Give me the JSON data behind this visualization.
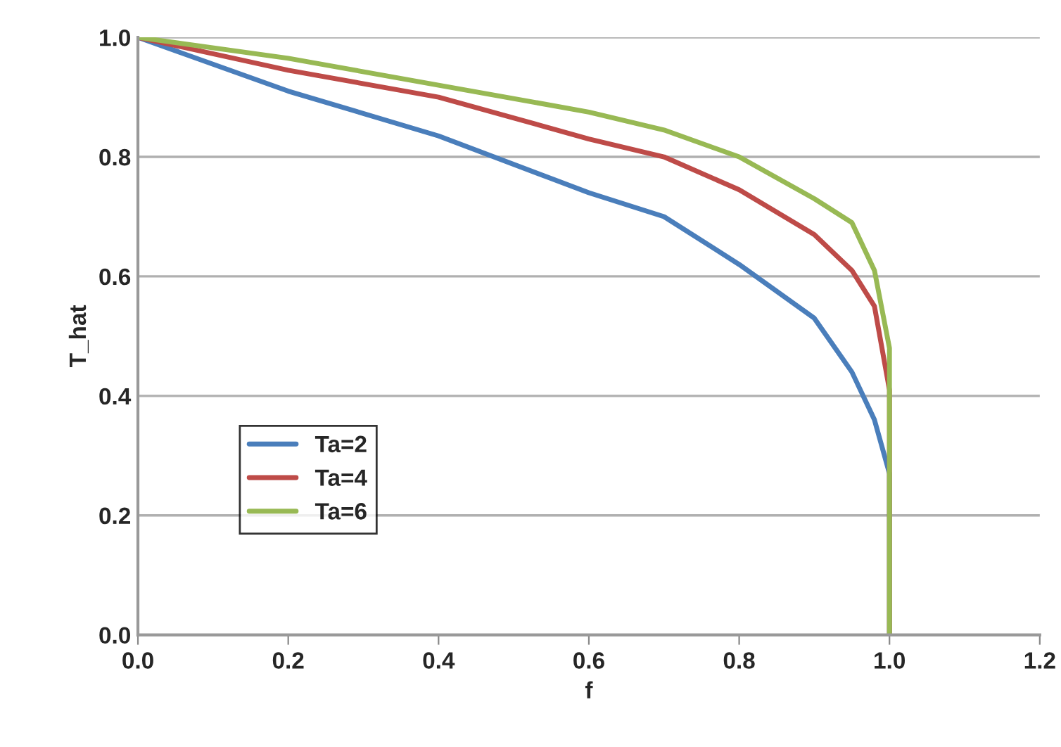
{
  "chart_data": {
    "type": "line",
    "xlabel": "f",
    "ylabel": "T_hat",
    "xlim": [
      0,
      1.2
    ],
    "xticks": [
      {
        "value": 0,
        "label": "0.0"
      },
      {
        "value": 0.2,
        "label": "0.2"
      },
      {
        "value": 0.4,
        "label": "0.4"
      },
      {
        "value": 0.6,
        "label": "0.6"
      },
      {
        "value": 0.8,
        "label": "0.8"
      },
      {
        "value": 1.0,
        "label": "1.0"
      },
      {
        "value": 1.2,
        "label": "1.2"
      }
    ],
    "ylim": [
      0,
      1.0
    ],
    "yticks": [
      {
        "value": 0,
        "label": "0.0"
      },
      {
        "value": 0.2,
        "label": "0.2"
      },
      {
        "value": 0.4,
        "label": "0.4"
      },
      {
        "value": 0.6,
        "label": "0.6"
      },
      {
        "value": 0.8,
        "label": "0.8"
      },
      {
        "value": 1.0,
        "label": "1.0"
      }
    ],
    "grid": "y",
    "legend": "bottom left",
    "marker": "none",
    "line_style": "solid",
    "series": [
      {
        "name": "Ta=2",
        "color": "#4a7ebb",
        "x": [
          0,
          0.2,
          0.4,
          0.6,
          0.7,
          0.8,
          0.9,
          0.95,
          0.98,
          1.0,
          1.0
        ],
        "values": [
          1.0,
          0.91,
          0.835,
          0.74,
          0.7,
          0.62,
          0.53,
          0.44,
          0.36,
          0.27,
          0
        ]
      },
      {
        "name": "Ta=4",
        "color": "#be4b48",
        "x": [
          0,
          0.2,
          0.4,
          0.6,
          0.7,
          0.8,
          0.9,
          0.95,
          0.98,
          1.0,
          1.0
        ],
        "values": [
          1.0,
          0.945,
          0.9,
          0.83,
          0.8,
          0.745,
          0.67,
          0.61,
          0.55,
          0.41,
          0
        ]
      },
      {
        "name": "Ta=6",
        "color": "#98b954",
        "x": [
          0,
          0.2,
          0.4,
          0.6,
          0.7,
          0.8,
          0.9,
          0.95,
          0.98,
          1.0,
          1.0
        ],
        "values": [
          1.0,
          0.965,
          0.92,
          0.875,
          0.845,
          0.8,
          0.73,
          0.69,
          0.61,
          0.48,
          0
        ]
      }
    ]
  }
}
